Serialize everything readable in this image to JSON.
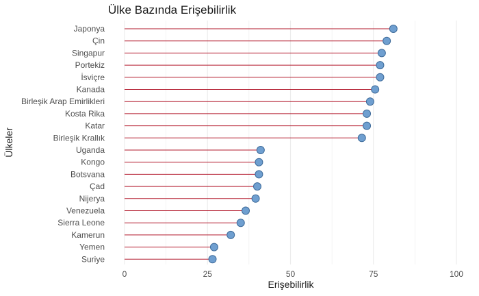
{
  "chart_data": {
    "type": "lollipop",
    "title": "Ülke Bazında Erişebilirlik",
    "xlabel": "Erişebilirlik",
    "ylabel": "Ülkeler",
    "xlim": [
      0,
      100
    ],
    "x_ticks": [
      0,
      25,
      50,
      75,
      100
    ],
    "grid": "vertical",
    "colors": {
      "stem": "#b2182b",
      "point_fill": "#6f9fd0",
      "point_stroke": "#3d6a99",
      "grid": "#ebebeb"
    },
    "categories": [
      "Japonya",
      "Çin",
      "Singapur",
      "Portekiz",
      "İsviçre",
      "Kanada",
      "Birleşik Arap Emirlikleri",
      "Kosta Rika",
      "Katar",
      "Birleşik Krallık",
      "Uganda",
      "Kongo",
      "Botsvana",
      "Çad",
      "Nijerya",
      "Venezuela",
      "Sierra Leone",
      "Kamerun",
      "Yemen",
      "Suriye"
    ],
    "values": [
      81,
      79,
      77.5,
      77,
      77,
      75.5,
      74,
      73,
      73,
      71.5,
      41,
      40.5,
      40.5,
      40,
      39.5,
      36.5,
      35,
      32,
      27,
      26.5
    ]
  }
}
